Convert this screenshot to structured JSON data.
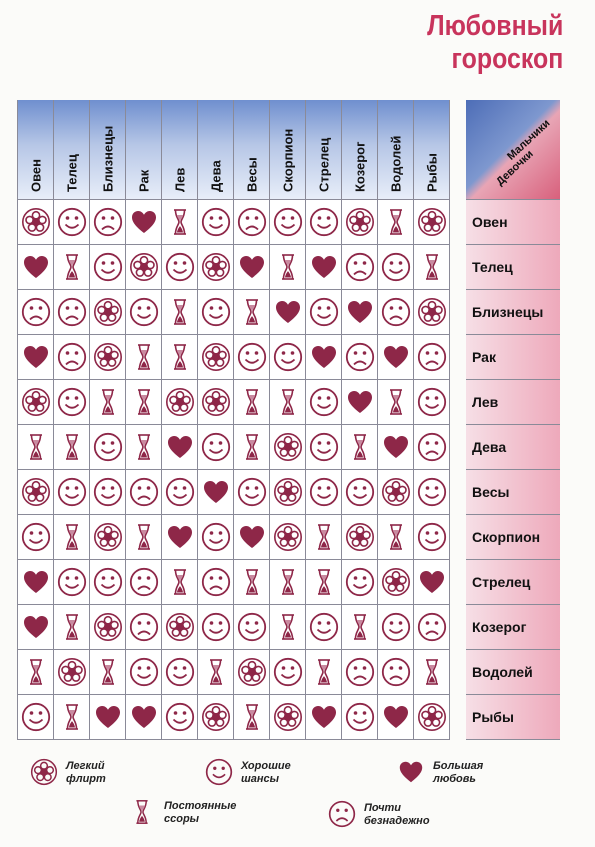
{
  "title": {
    "line1": "Любовный",
    "line2": "гороскоп"
  },
  "header": {
    "boys": "Мальчики",
    "girls": "Девочки"
  },
  "columns": [
    "Овен",
    "Телец",
    "Близнецы",
    "Рак",
    "Лев",
    "Дева",
    "Весы",
    "Скорпион",
    "Стрелец",
    "Козерог",
    "Водолей",
    "Рыбы"
  ],
  "rows": [
    {
      "label": "Овен",
      "cells": [
        "flower",
        "smile",
        "frown",
        "heart",
        "hourglass",
        "smile",
        "frown",
        "smile",
        "smile",
        "flower",
        "hourglass",
        "flower"
      ]
    },
    {
      "label": "Телец",
      "cells": [
        "heart",
        "hourglass",
        "smile",
        "flower",
        "smile",
        "flower",
        "heart",
        "hourglass",
        "heart",
        "frown",
        "smile",
        "hourglass"
      ]
    },
    {
      "label": "Близнецы",
      "cells": [
        "frown",
        "frown",
        "flower",
        "smile",
        "hourglass",
        "smile",
        "hourglass",
        "heart",
        "smile",
        "heart",
        "frown",
        "flower"
      ]
    },
    {
      "label": "Рак",
      "cells": [
        "heart",
        "frown",
        "flower",
        "hourglass",
        "hourglass",
        "flower",
        "smile",
        "smile",
        "heart",
        "frown",
        "heart",
        "frown"
      ]
    },
    {
      "label": "Лев",
      "cells": [
        "flower",
        "smile",
        "hourglass",
        "hourglass",
        "flower",
        "flower",
        "hourglass",
        "hourglass",
        "smile",
        "heart",
        "hourglass",
        "smile"
      ]
    },
    {
      "label": "Дева",
      "cells": [
        "hourglass",
        "hourglass",
        "smile",
        "hourglass",
        "heart",
        "smile",
        "hourglass",
        "flower",
        "smile",
        "hourglass",
        "heart",
        "frown"
      ]
    },
    {
      "label": "Весы",
      "cells": [
        "flower",
        "smile",
        "smile",
        "frown",
        "smile",
        "heart",
        "smile",
        "flower",
        "smile",
        "smile",
        "flower",
        "smile"
      ]
    },
    {
      "label": "Скорпион",
      "cells": [
        "smile",
        "hourglass",
        "flower",
        "hourglass",
        "heart",
        "smile",
        "heart",
        "flower",
        "hourglass",
        "flower",
        "hourglass",
        "smile"
      ]
    },
    {
      "label": "Стрелец",
      "cells": [
        "heart",
        "smile",
        "smile",
        "frown",
        "hourglass",
        "frown",
        "hourglass",
        "hourglass",
        "hourglass",
        "smile",
        "flower",
        "heart"
      ]
    },
    {
      "label": "Козерог",
      "cells": [
        "heart",
        "hourglass",
        "flower",
        "frown",
        "flower",
        "smile",
        "smile",
        "hourglass",
        "smile",
        "hourglass",
        "smile",
        "frown"
      ]
    },
    {
      "label": "Водолей",
      "cells": [
        "hourglass",
        "flower",
        "hourglass",
        "smile",
        "smile",
        "hourglass",
        "flower",
        "smile",
        "hourglass",
        "frown",
        "frown",
        "hourglass"
      ]
    },
    {
      "label": "Рыбы",
      "cells": [
        "smile",
        "hourglass",
        "heart",
        "heart",
        "smile",
        "flower",
        "hourglass",
        "flower",
        "heart",
        "smile",
        "heart",
        "flower"
      ]
    }
  ],
  "legend": [
    {
      "icon": "flower",
      "text": "Легкий\nфлирт"
    },
    {
      "icon": "smile",
      "text": "Хорошие шансы"
    },
    {
      "icon": "heart",
      "text": "Большая любовь"
    },
    {
      "icon": "hourglass",
      "text": "Постоянные\nссоры"
    },
    {
      "icon": "frown",
      "text": "Почти\nбезнадежно"
    }
  ],
  "colors": {
    "accent": "#c8345c",
    "icon": "#8e2748",
    "header_blue": "#6f8fcf",
    "row_pink": "#eea9bb"
  }
}
